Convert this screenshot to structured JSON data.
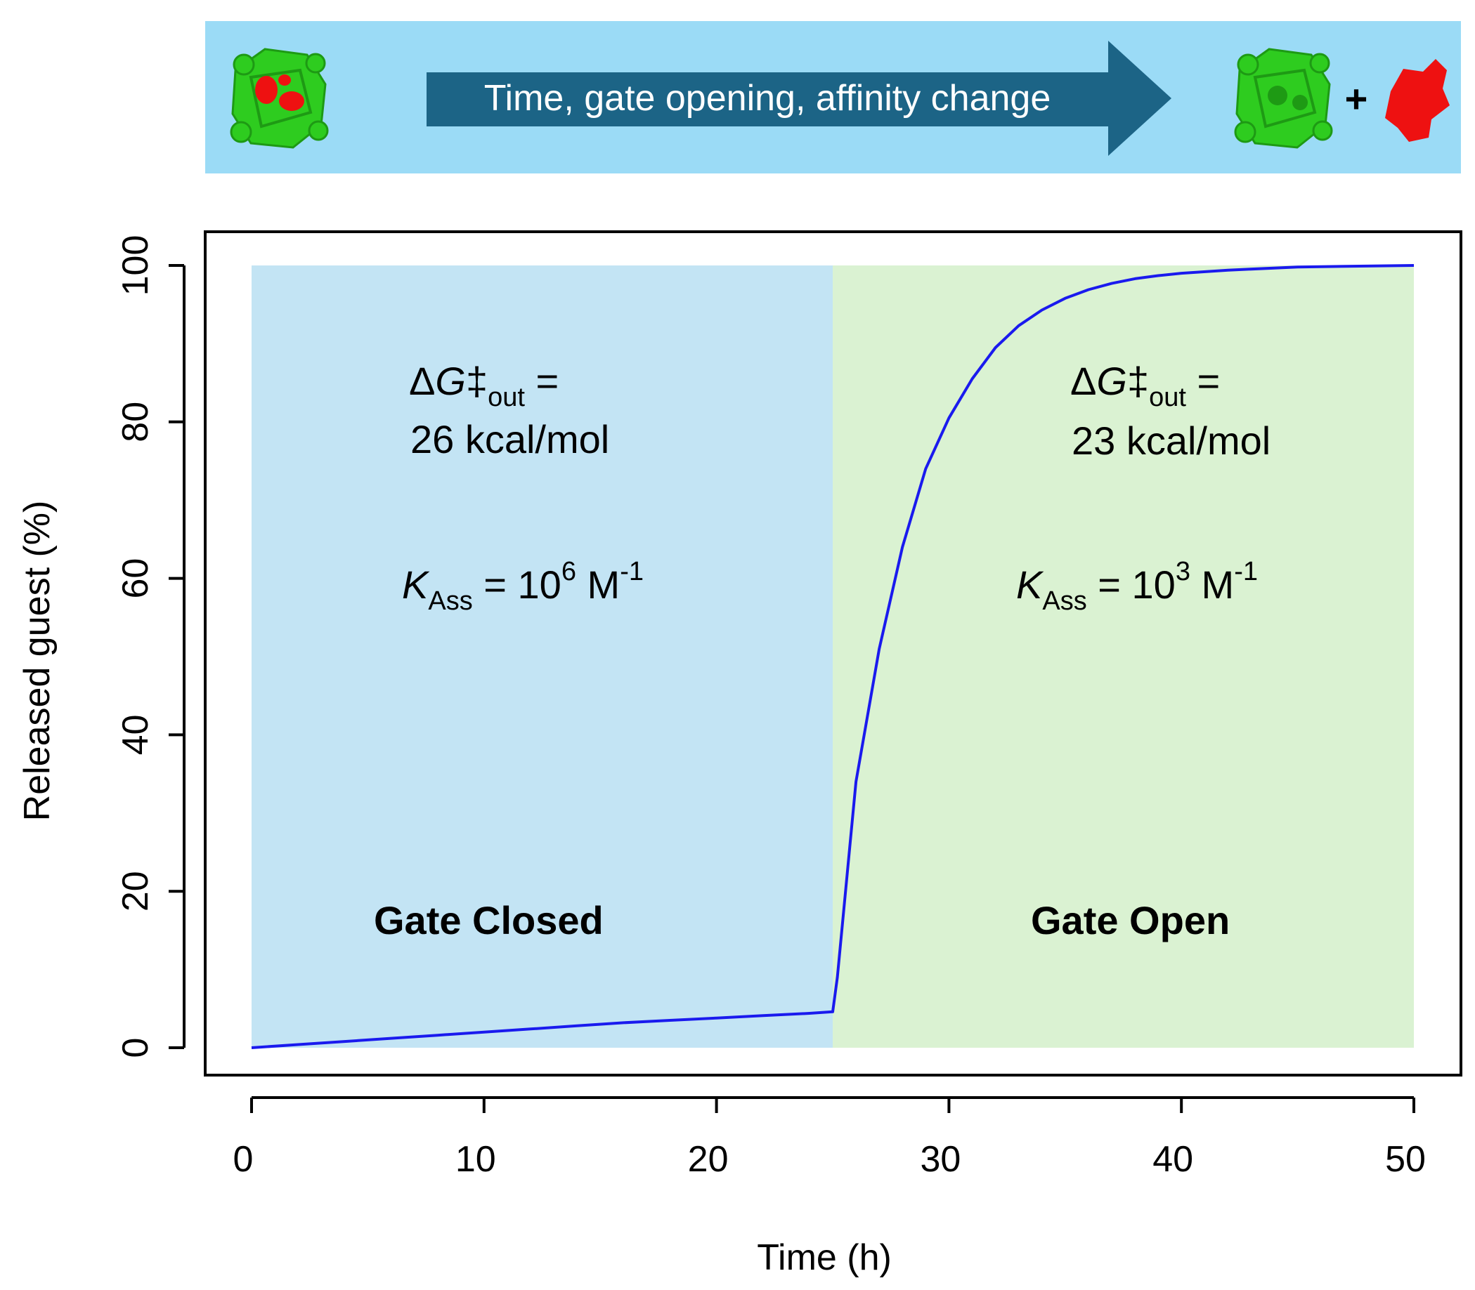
{
  "banner": {
    "arrow_label": "Time, gate opening, affinity change",
    "plus_sign": "+",
    "colors": {
      "background": "#9BDBF6",
      "arrow": "#1C6486",
      "cage": "#2ECC1F",
      "guest": "#EE1111"
    },
    "icons": [
      "cage-with-guest-icon",
      "empty-cage-icon",
      "guest-molecule-icon"
    ]
  },
  "annotations": {
    "closed": {
      "dg_prefix": "Δ",
      "dg_var": "G",
      "dg_dagger": "‡",
      "dg_sub": "out",
      "dg_eq": " =",
      "dg_value": "26 kcal/mol",
      "k_var": "K",
      "k_sub": "Ass",
      "k_eq": " = 10",
      "k_exp": "6",
      "k_unit": " M",
      "k_unit_exp": "-1"
    },
    "open": {
      "dg_prefix": "Δ",
      "dg_var": "G",
      "dg_dagger": "‡",
      "dg_sub": "out",
      "dg_eq": " =",
      "dg_value": "23 kcal/mol",
      "k_var": "K",
      "k_sub": "Ass",
      "k_eq": " = 10",
      "k_exp": "3",
      "k_unit": " M",
      "k_unit_exp": "-1"
    }
  },
  "chart_data": {
    "type": "line",
    "title": "",
    "xlabel": "Time (h)",
    "ylabel": "Released guest (%)",
    "xlim": [
      0,
      50
    ],
    "ylim": [
      0,
      100
    ],
    "xticks": [
      0,
      10,
      20,
      30,
      40,
      50
    ],
    "yticks": [
      0,
      20,
      40,
      60,
      80,
      100
    ],
    "grid": false,
    "regions": [
      {
        "label": "Gate Closed",
        "x_start": 0,
        "x_end": 25,
        "color": "#C3E4F4"
      },
      {
        "label": "Gate Open",
        "x_start": 25,
        "x_end": 50,
        "color": "#DAF2D2"
      }
    ],
    "series": [
      {
        "color": "#1A1AEE",
        "x": [
          0,
          2,
          4,
          6,
          8,
          10,
          12,
          14,
          16,
          18,
          20,
          22,
          24,
          25,
          25.2,
          26,
          27,
          28,
          29,
          30,
          31,
          32,
          33,
          34,
          35,
          36,
          37,
          38,
          39,
          40,
          42,
          45,
          50
        ],
        "y": [
          0,
          0.4,
          0.8,
          1.2,
          1.6,
          2.0,
          2.4,
          2.8,
          3.2,
          3.5,
          3.8,
          4.1,
          4.4,
          4.6,
          9.0,
          34,
          51,
          64,
          74,
          80.5,
          85.5,
          89.5,
          92.3,
          94.3,
          95.8,
          96.9,
          97.7,
          98.3,
          98.7,
          99.0,
          99.4,
          99.8,
          100
        ]
      }
    ]
  }
}
